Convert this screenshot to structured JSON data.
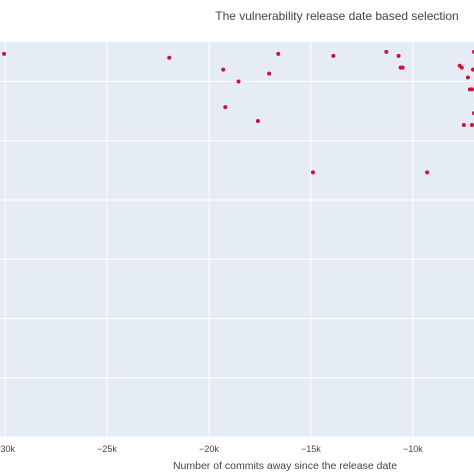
{
  "chart_data": {
    "type": "scatter",
    "title": "The vulnerability release date based selection",
    "xlabel": "Number of commits away since the release date",
    "ylabel": "",
    "x_ticks": [
      -30000,
      -25000,
      -20000,
      -15000,
      -10000
    ],
    "x_tick_labels": [
      "−30k",
      "−25k",
      "−20k",
      "−15k",
      "−10k"
    ],
    "xlim": [
      -30250,
      -7000
    ],
    "ylim": [
      0,
      100
    ],
    "grid": true,
    "legend": "none",
    "colors": {
      "plot_bg": "#e5ecf6",
      "grid": "#ffffff",
      "marker": "#d0103a"
    },
    "points": [
      {
        "x": -30050,
        "y": 97
      },
      {
        "x": -21950,
        "y": 96
      },
      {
        "x": -19300,
        "y": 93
      },
      {
        "x": -18550,
        "y": 90
      },
      {
        "x": -17050,
        "y": 92
      },
      {
        "x": -16600,
        "y": 97
      },
      {
        "x": -13900,
        "y": 96.5
      },
      {
        "x": -11300,
        "y": 97.5
      },
      {
        "x": -10700,
        "y": 96.5
      },
      {
        "x": -10600,
        "y": 93.5
      },
      {
        "x": -10500,
        "y": 93.5
      },
      {
        "x": -19200,
        "y": 83.5
      },
      {
        "x": -17600,
        "y": 80
      },
      {
        "x": -14900,
        "y": 67
      },
      {
        "x": -9300,
        "y": 67
      },
      {
        "x": -7700,
        "y": 94
      },
      {
        "x": -7600,
        "y": 93.5
      },
      {
        "x": -7300,
        "y": 91
      },
      {
        "x": -7000,
        "y": 97.5
      },
      {
        "x": -7050,
        "y": 93
      },
      {
        "x": -7100,
        "y": 88
      },
      {
        "x": -7200,
        "y": 88
      },
      {
        "x": -7500,
        "y": 79
      },
      {
        "x": -7000,
        "y": 82
      },
      {
        "x": -7100,
        "y": 79
      }
    ]
  }
}
